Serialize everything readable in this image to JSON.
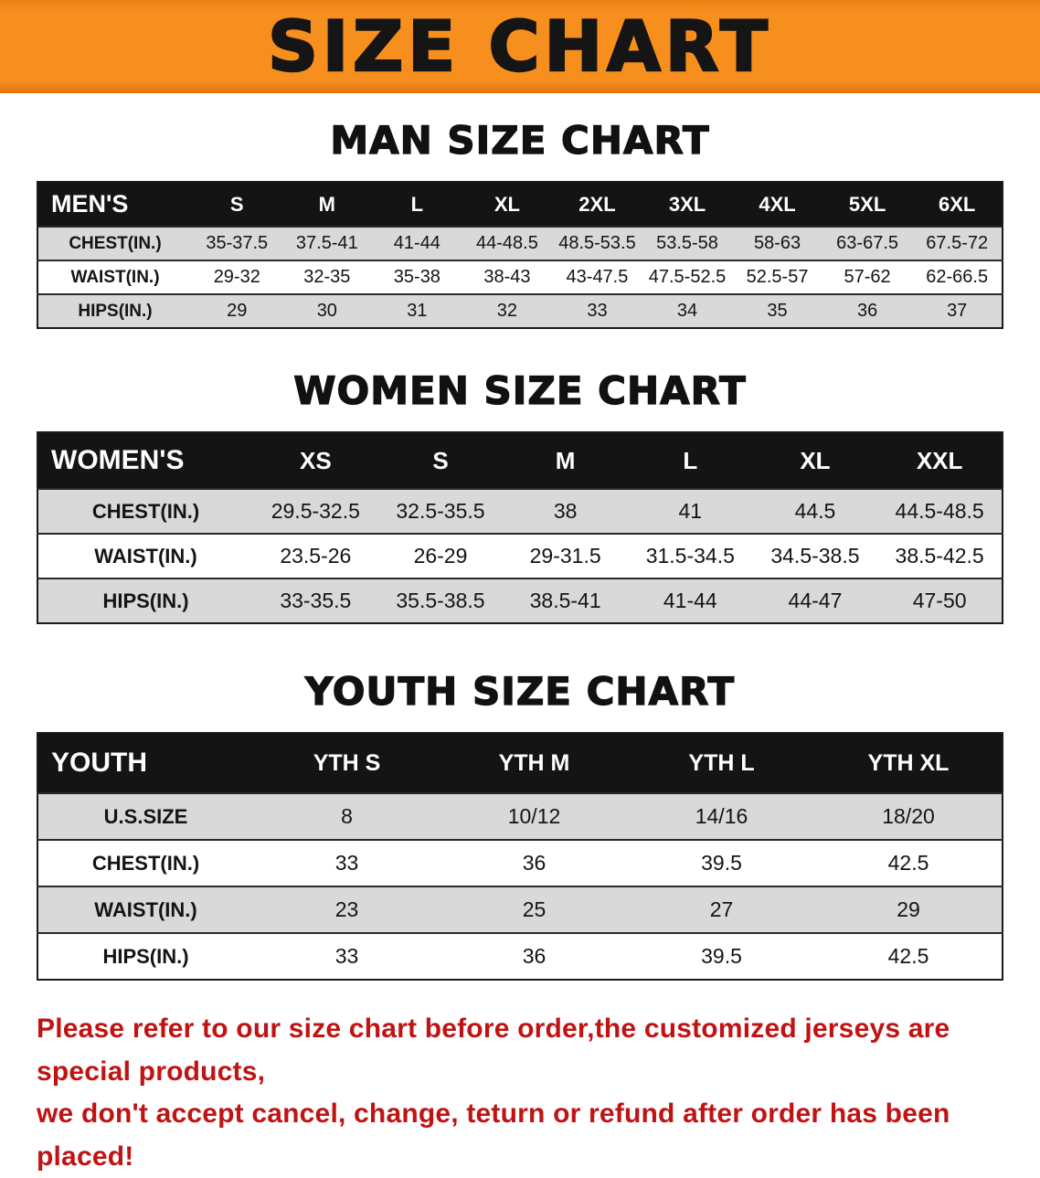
{
  "banner": {
    "title": "SIZE CHART",
    "background_color": "#f78f1e",
    "text_color": "#151515"
  },
  "colors": {
    "table_header_bg": "#141414",
    "table_header_text": "#ffffff",
    "row_stripe_gray": "#d9d9d9",
    "disclaimer_red": "#c01313"
  },
  "sections": [
    {
      "heading": "MAN SIZE CHART",
      "table": {
        "header": [
          "MEN'S",
          "S",
          "M",
          "L",
          "XL",
          "2XL",
          "3XL",
          "4XL",
          "5XL",
          "6XL"
        ],
        "rows": [
          [
            "CHEST(IN.)",
            "35-37.5",
            "37.5-41",
            "41-44",
            "44-48.5",
            "48.5-53.5",
            "53.5-58",
            "58-63",
            "63-67.5",
            "67.5-72"
          ],
          [
            "WAIST(IN.)",
            "29-32",
            "32-35",
            "35-38",
            "38-43",
            "43-47.5",
            "47.5-52.5",
            "52.5-57",
            "57-62",
            "62-66.5"
          ],
          [
            "HIPS(IN.)",
            "29",
            "30",
            "31",
            "32",
            "33",
            "34",
            "35",
            "36",
            "37"
          ]
        ]
      }
    },
    {
      "heading": "WOMEN SIZE CHART",
      "table": {
        "header": [
          "WOMEN'S",
          "XS",
          "S",
          "M",
          "L",
          "XL",
          "XXL"
        ],
        "rows": [
          [
            "CHEST(IN.)",
            "29.5-32.5",
            "32.5-35.5",
            "38",
            "41",
            "44.5",
            "44.5-48.5"
          ],
          [
            "WAIST(IN.)",
            "23.5-26",
            "26-29",
            "29-31.5",
            "31.5-34.5",
            "34.5-38.5",
            "38.5-42.5"
          ],
          [
            "HIPS(IN.)",
            "33-35.5",
            "35.5-38.5",
            "38.5-41",
            "41-44",
            "44-47",
            "47-50"
          ]
        ]
      }
    },
    {
      "heading": "YOUTH SIZE CHART",
      "table": {
        "header": [
          "YOUTH",
          "YTH S",
          "YTH M",
          "YTH L",
          "YTH XL"
        ],
        "rows": [
          [
            "U.S.SIZE",
            "8",
            "10/12",
            "14/16",
            "18/20"
          ],
          [
            "CHEST(IN.)",
            "33",
            "36",
            "39.5",
            "42.5"
          ],
          [
            "WAIST(IN.)",
            "23",
            "25",
            "27",
            "29"
          ],
          [
            "HIPS(IN.)",
            "33",
            "36",
            "39.5",
            "42.5"
          ]
        ]
      }
    }
  ],
  "disclaimer": {
    "line1": "Please refer to our size chart before order,the customized jerseys are special products,",
    "line2": "we don't accept cancel, change, teturn or refund after order has been placed!"
  }
}
